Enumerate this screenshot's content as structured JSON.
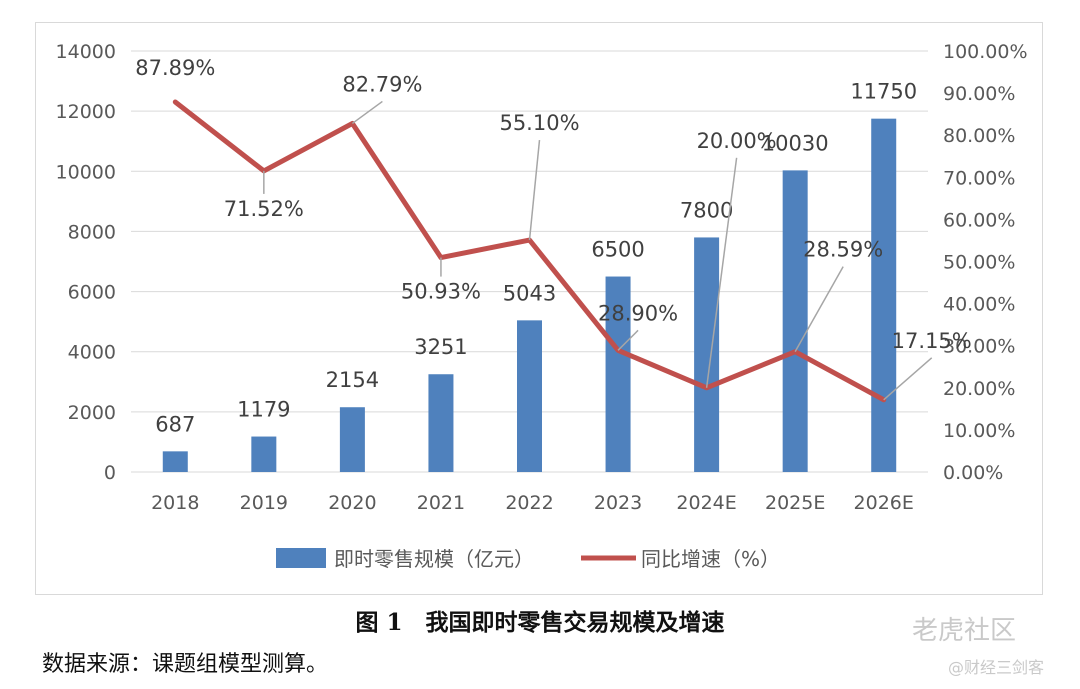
{
  "chart_data": {
    "type": "bar",
    "categories": [
      "2018",
      "2019",
      "2020",
      "2021",
      "2022",
      "2023",
      "2024E",
      "2025E",
      "2026E"
    ],
    "series": [
      {
        "name": "即时零售规模（亿元）",
        "type": "bar",
        "axis": "left",
        "color": "#4f81bd",
        "values": [
          687,
          1179,
          2154,
          3251,
          5043,
          6500,
          7800,
          10030,
          11750
        ],
        "labels": [
          "687",
          "1179",
          "2154",
          "3251",
          "5043",
          "6500",
          "7800",
          "10030",
          "11750"
        ]
      },
      {
        "name": "同比增速（%）",
        "type": "line",
        "axis": "right",
        "color": "#c0504d",
        "values": [
          87.89,
          71.52,
          82.79,
          50.93,
          55.1,
          28.9,
          20.0,
          28.59,
          17.15
        ],
        "labels": [
          "87.89%",
          "71.52%",
          "82.79%",
          "50.93%",
          "55.10%",
          "28.90%",
          "20.00%",
          "28.59%",
          "17.15%"
        ]
      }
    ],
    "ylim": [
      0,
      14000
    ],
    "y_ticks": [
      "0",
      "2000",
      "4000",
      "6000",
      "8000",
      "10000",
      "12000",
      "14000"
    ],
    "y2lim": [
      0,
      100
    ],
    "y2_ticks": [
      "0.00%",
      "10.00%",
      "20.00%",
      "30.00%",
      "40.00%",
      "50.00%",
      "60.00%",
      "70.00%",
      "80.00%",
      "90.00%",
      "100.00%"
    ],
    "legend_position": "bottom",
    "grid": true
  },
  "caption": "图 1　我国即时零售交易规模及增速",
  "source": "数据来源：课题组模型测算。",
  "watermark": {
    "main": "老虎社区",
    "sub": "@财经三剑客"
  }
}
